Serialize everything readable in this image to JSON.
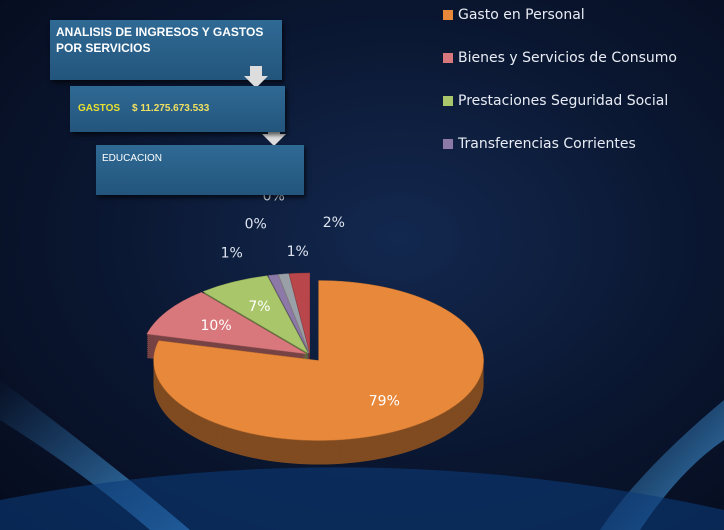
{
  "chart_data": {
    "type": "pie",
    "title": "ANALISIS DE INGRESOS Y GASTOS POR SERVICIOS",
    "annotations": [
      "GASTOS",
      "$ 11.275.673.533",
      "EDUCACION"
    ],
    "categories": [
      "Gasto en Personal",
      "Bienes y Servicios de Consumo",
      "Prestaciones Seguridad Social",
      "Transferencias Corrientes",
      null,
      null,
      null,
      null
    ],
    "values": [
      79,
      10,
      7,
      1,
      0,
      0,
      1,
      2
    ],
    "value_labels": [
      "79%",
      "10%",
      "7%",
      "1%",
      "0%",
      "0%",
      "1%",
      "2%"
    ],
    "colors": [
      "#e8883a",
      "#d9787c",
      "#a9c66a",
      "#8c79a8",
      "#5b8fc7",
      "#c9a04a",
      "#9aa0a8",
      "#b8464a"
    ]
  }
}
